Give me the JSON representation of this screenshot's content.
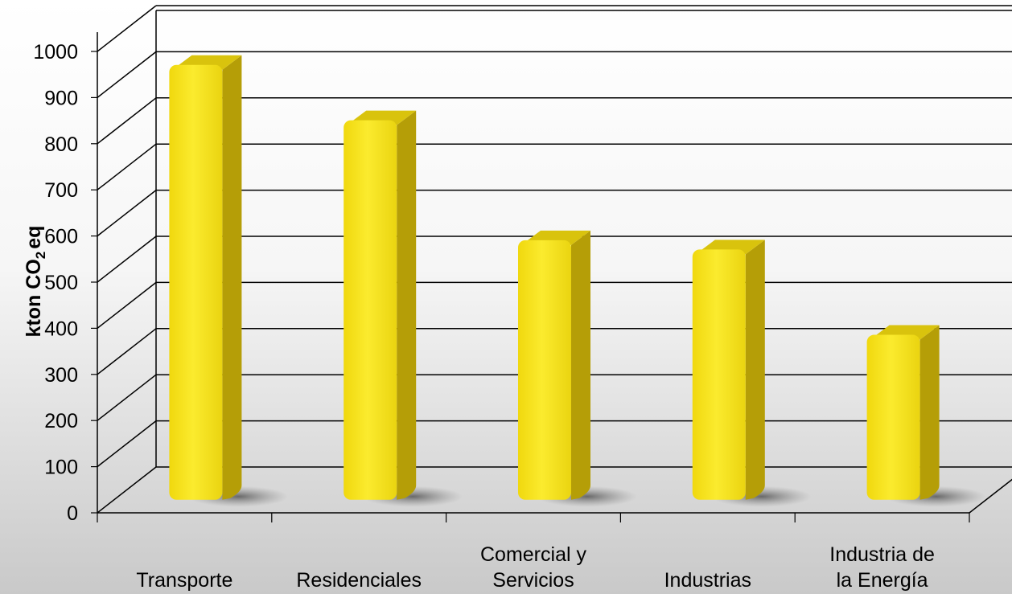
{
  "chart_data": {
    "type": "bar",
    "categories": [
      [
        "Transporte"
      ],
      [
        "Residenciales"
      ],
      [
        "Comercial y",
        "Servicios"
      ],
      [
        "Industrias"
      ],
      [
        "Industria de",
        "la Energía"
      ]
    ],
    "values": [
      960,
      840,
      580,
      560,
      375
    ],
    "title": "",
    "xlabel": "",
    "ylabel": {
      "prefix": "kton CO",
      "subscript": "2",
      "suffix": "eq"
    },
    "ylim": [
      0,
      1000
    ],
    "yticks": [
      0,
      100,
      200,
      300,
      400,
      500,
      600,
      700,
      800,
      900,
      1000
    ],
    "grid": true,
    "style": "3d-column",
    "colors": {
      "bar_front": "#f5e21a",
      "bar_side": "#b59e07",
      "bar_top": "#d9c30d",
      "gridline": "#000000",
      "background_top": "#ffffff",
      "background_bottom": "#c9c9c9"
    }
  }
}
